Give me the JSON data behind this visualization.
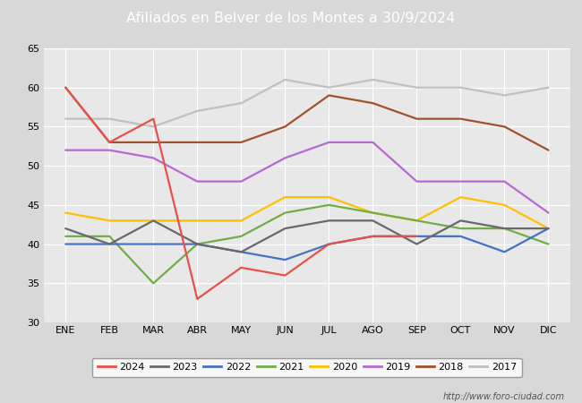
{
  "title": "Afiliados en Belver de los Montes a 30/9/2024",
  "months": [
    "ENE",
    "FEB",
    "MAR",
    "ABR",
    "MAY",
    "JUN",
    "JUL",
    "AGO",
    "SEP",
    "OCT",
    "NOV",
    "DIC"
  ],
  "series": {
    "2024": {
      "color": "#e8514a",
      "data": [
        60,
        53,
        56,
        33,
        37,
        36,
        40,
        41,
        41,
        null,
        null,
        null
      ]
    },
    "2023": {
      "color": "#696969",
      "data": [
        42,
        40,
        43,
        40,
        39,
        42,
        43,
        43,
        40,
        43,
        42,
        42
      ]
    },
    "2022": {
      "color": "#4472c4",
      "data": [
        40,
        40,
        40,
        40,
        39,
        38,
        40,
        41,
        41,
        41,
        39,
        42
      ]
    },
    "2021": {
      "color": "#70ad47",
      "data": [
        41,
        41,
        35,
        40,
        41,
        44,
        45,
        44,
        43,
        42,
        42,
        40
      ]
    },
    "2020": {
      "color": "#ffc000",
      "data": [
        44,
        43,
        43,
        43,
        43,
        46,
        46,
        44,
        43,
        46,
        45,
        42
      ]
    },
    "2019": {
      "color": "#b668d4",
      "data": [
        52,
        52,
        51,
        48,
        48,
        51,
        53,
        53,
        48,
        48,
        48,
        44
      ]
    },
    "2018": {
      "color": "#a0522d",
      "data": [
        60,
        53,
        53,
        53,
        53,
        55,
        59,
        58,
        56,
        56,
        55,
        52
      ]
    },
    "2017": {
      "color": "#c0c0c0",
      "data": [
        56,
        56,
        55,
        57,
        58,
        61,
        60,
        61,
        60,
        60,
        59,
        60
      ]
    }
  },
  "ylim": [
    30,
    65
  ],
  "yticks": [
    30,
    35,
    40,
    45,
    50,
    55,
    60,
    65
  ],
  "legend_order": [
    "2024",
    "2023",
    "2022",
    "2021",
    "2020",
    "2019",
    "2018",
    "2017"
  ],
  "footer_text": "http://www.foro-ciudad.com",
  "header_bg": "#4f86c6",
  "bg_color": "#d8d8d8",
  "plot_bg": "#e8e8e8",
  "grid_color": "#ffffff"
}
